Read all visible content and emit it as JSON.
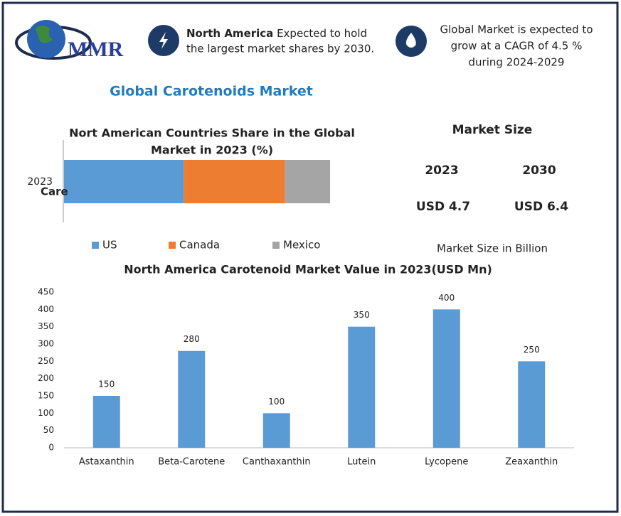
{
  "logo": {
    "text": "MMR"
  },
  "header": {
    "left_bold": "North America",
    "left_lines": [
      "Expected to hold",
      "the largest market shares by 2030."
    ],
    "right_lines": [
      "Global Market is expected to",
      "grow at a CAGR of 4.5 %",
      "during 2024-2029"
    ]
  },
  "title": "Global Carotenoids  Market",
  "market_size": {
    "heading": "Market Size",
    "years": [
      "2023",
      "2030"
    ],
    "values": [
      "USD 4.7",
      "USD 6.4"
    ],
    "note": "Market Size in Billion"
  },
  "chart_data": [
    {
      "type": "stacked-bar-horizontal",
      "title": [
        "Nort American Countries Share in the Global",
        "Market in 2023 (%)"
      ],
      "categories": [
        "2023"
      ],
      "y_axis_label": "Care",
      "xlim": [
        0,
        100
      ],
      "series": [
        {
          "name": "US",
          "color": "#5b9bd5",
          "values": [
            45
          ]
        },
        {
          "name": "Canada",
          "color": "#ed7d31",
          "values": [
            38
          ]
        },
        {
          "name": "Mexico",
          "color": "#a5a5a5",
          "values": [
            17
          ]
        }
      ]
    },
    {
      "type": "bar",
      "title": "North America Carotenoid Market Value in 2023(USD Mn)",
      "categories": [
        "Astaxanthin",
        "Beta-Carotene",
        "Canthaxanthin",
        "Lutein",
        "Lycopene",
        "Zeaxanthin"
      ],
      "values": [
        150,
        280,
        100,
        350,
        400,
        250
      ],
      "color": "#5b9bd5",
      "ylim": [
        0,
        450
      ],
      "yticks": [
        0,
        50,
        100,
        150,
        200,
        250,
        300,
        350,
        400,
        450
      ]
    }
  ]
}
